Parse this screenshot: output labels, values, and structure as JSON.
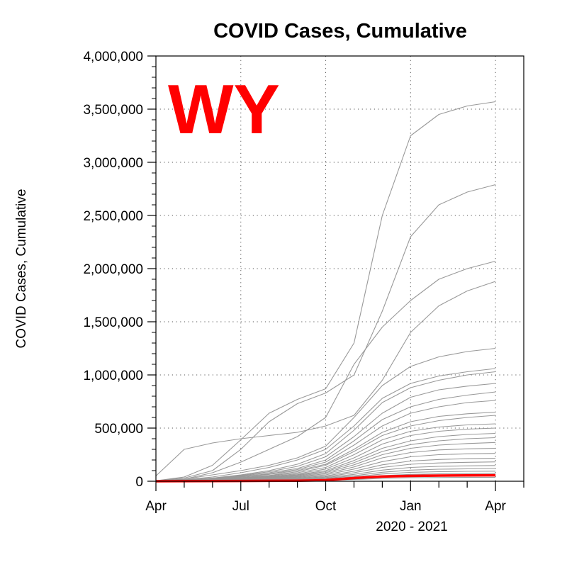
{
  "chart_data": {
    "type": "line",
    "title": "COVID Cases, Cumulative",
    "ylabel": "COVID Cases, Cumulative",
    "xlabel": "2020 - 2021",
    "overlay_label": "WY",
    "highlight_color": "#ff0000",
    "background_color": "#999999",
    "x_months_since_apr_2020": [
      0,
      1,
      2,
      3,
      4,
      5,
      6,
      7,
      8,
      9,
      10,
      11,
      12
    ],
    "x_tick_labels": [
      "Apr",
      "Jul",
      "Oct",
      "Jan",
      "Apr"
    ],
    "x_tick_months": [
      0,
      3,
      6,
      9,
      12
    ],
    "xlim": [
      0,
      13
    ],
    "ylim": [
      0,
      4000000
    ],
    "y_tick_values": [
      0,
      500000,
      1000000,
      1500000,
      2000000,
      2500000,
      3000000,
      3500000,
      4000000
    ],
    "y_tick_labels": [
      "0",
      "500,000",
      "1,000,000",
      "1,500,000",
      "2,000,000",
      "2,500,000",
      "3,000,000",
      "3,500,000",
      "4,000,000"
    ],
    "grid": true,
    "highlight_series": {
      "name": "WY",
      "values": [
        300,
        500,
        1100,
        2500,
        3800,
        5500,
        10000,
        30000,
        44000,
        50000,
        53000,
        55000,
        56000
      ]
    },
    "background_series": [
      {
        "values": [
          5000,
          40000,
          150000,
          390000,
          640000,
          770000,
          870000,
          1300000,
          2500000,
          3250000,
          3450000,
          3530000,
          3570000
        ]
      },
      {
        "values": [
          5000,
          30000,
          100000,
          300000,
          560000,
          730000,
          830000,
          1000000,
          1600000,
          2300000,
          2600000,
          2720000,
          2790000
        ]
      },
      {
        "values": [
          3000,
          20000,
          80000,
          180000,
          300000,
          420000,
          600000,
          1100000,
          1450000,
          1700000,
          1900000,
          2000000,
          2070000
        ]
      },
      {
        "values": [
          50000,
          300000,
          360000,
          400000,
          430000,
          460000,
          520000,
          620000,
          950000,
          1400000,
          1650000,
          1790000,
          1880000
        ]
      },
      {
        "values": [
          5000,
          20000,
          60000,
          100000,
          150000,
          220000,
          330000,
          600000,
          900000,
          1080000,
          1170000,
          1220000,
          1250000
        ]
      },
      {
        "values": [
          3000,
          15000,
          40000,
          80000,
          130000,
          200000,
          300000,
          520000,
          780000,
          920000,
          990000,
          1030000,
          1060000
        ]
      },
      {
        "values": [
          2000,
          12000,
          30000,
          60000,
          100000,
          160000,
          260000,
          480000,
          740000,
          880000,
          950000,
          1000000,
          1030000
        ]
      },
      {
        "values": [
          2000,
          10000,
          30000,
          55000,
          90000,
          140000,
          230000,
          420000,
          640000,
          790000,
          860000,
          895000,
          920000
        ]
      },
      {
        "values": [
          2000,
          10000,
          25000,
          50000,
          80000,
          120000,
          200000,
          380000,
          580000,
          700000,
          770000,
          810000,
          840000
        ]
      },
      {
        "values": [
          1000,
          8000,
          20000,
          45000,
          70000,
          110000,
          180000,
          340000,
          520000,
          640000,
          700000,
          740000,
          760000
        ]
      },
      {
        "values": [
          1000,
          7000,
          18000,
          40000,
          65000,
          100000,
          160000,
          300000,
          460000,
          560000,
          610000,
          635000,
          650000
        ]
      },
      {
        "values": [
          1000,
          6000,
          16000,
          35000,
          55000,
          90000,
          150000,
          280000,
          430000,
          520000,
          570000,
          600000,
          620000
        ]
      },
      {
        "values": [
          1000,
          5000,
          14000,
          30000,
          50000,
          80000,
          130000,
          250000,
          390000,
          470000,
          510000,
          530000,
          540000
        ]
      },
      {
        "values": [
          1000,
          5000,
          12000,
          28000,
          45000,
          70000,
          115000,
          220000,
          350000,
          430000,
          470000,
          490000,
          500000
        ]
      },
      {
        "values": [
          800,
          4000,
          10000,
          24000,
          40000,
          62000,
          100000,
          195000,
          310000,
          380000,
          420000,
          440000,
          450000
        ]
      },
      {
        "values": [
          800,
          4000,
          9000,
          22000,
          36000,
          56000,
          90000,
          175000,
          280000,
          345000,
          380000,
          400000,
          410000
        ]
      },
      {
        "values": [
          600,
          3500,
          8000,
          19000,
          32000,
          50000,
          80000,
          155000,
          250000,
          310000,
          340000,
          355000,
          365000
        ]
      },
      {
        "values": [
          600,
          3000,
          7000,
          17000,
          28000,
          44000,
          70000,
          135000,
          220000,
          270000,
          295000,
          305000,
          310000
        ]
      },
      {
        "values": [
          500,
          2500,
          6000,
          14000,
          24000,
          38000,
          60000,
          115000,
          185000,
          230000,
          250000,
          258000,
          262000
        ]
      },
      {
        "values": [
          500,
          2000,
          5000,
          12000,
          20000,
          32000,
          50000,
          95000,
          155000,
          190000,
          205000,
          212000,
          216000
        ]
      },
      {
        "values": [
          400,
          1800,
          4000,
          10000,
          17000,
          27000,
          42000,
          80000,
          130000,
          160000,
          172000,
          178000,
          182000
        ]
      },
      {
        "values": [
          300,
          1500,
          3500,
          8000,
          14000,
          22000,
          35000,
          65000,
          105000,
          130000,
          140000,
          145000,
          148000
        ]
      },
      {
        "values": [
          300,
          1200,
          3000,
          6500,
          11000,
          18000,
          28000,
          52000,
          85000,
          105000,
          113000,
          117000,
          120000
        ]
      },
      {
        "values": [
          200,
          1000,
          2500,
          5000,
          9000,
          14000,
          22000,
          42000,
          68000,
          84000,
          90000,
          93000,
          95000
        ]
      },
      {
        "values": [
          200,
          800,
          2000,
          4000,
          7000,
          11000,
          17000,
          33000,
          53000,
          65000,
          70000,
          72000,
          74000
        ]
      },
      {
        "values": [
          100,
          600,
          1500,
          3000,
          5000,
          8000,
          12000,
          24000,
          38000,
          47000,
          50000,
          52000,
          53000
        ]
      },
      {
        "values": [
          100,
          400,
          1000,
          2000,
          3500,
          5500,
          8500,
          17000,
          27000,
          33000,
          35000,
          36000,
          37000
        ]
      }
    ]
  }
}
